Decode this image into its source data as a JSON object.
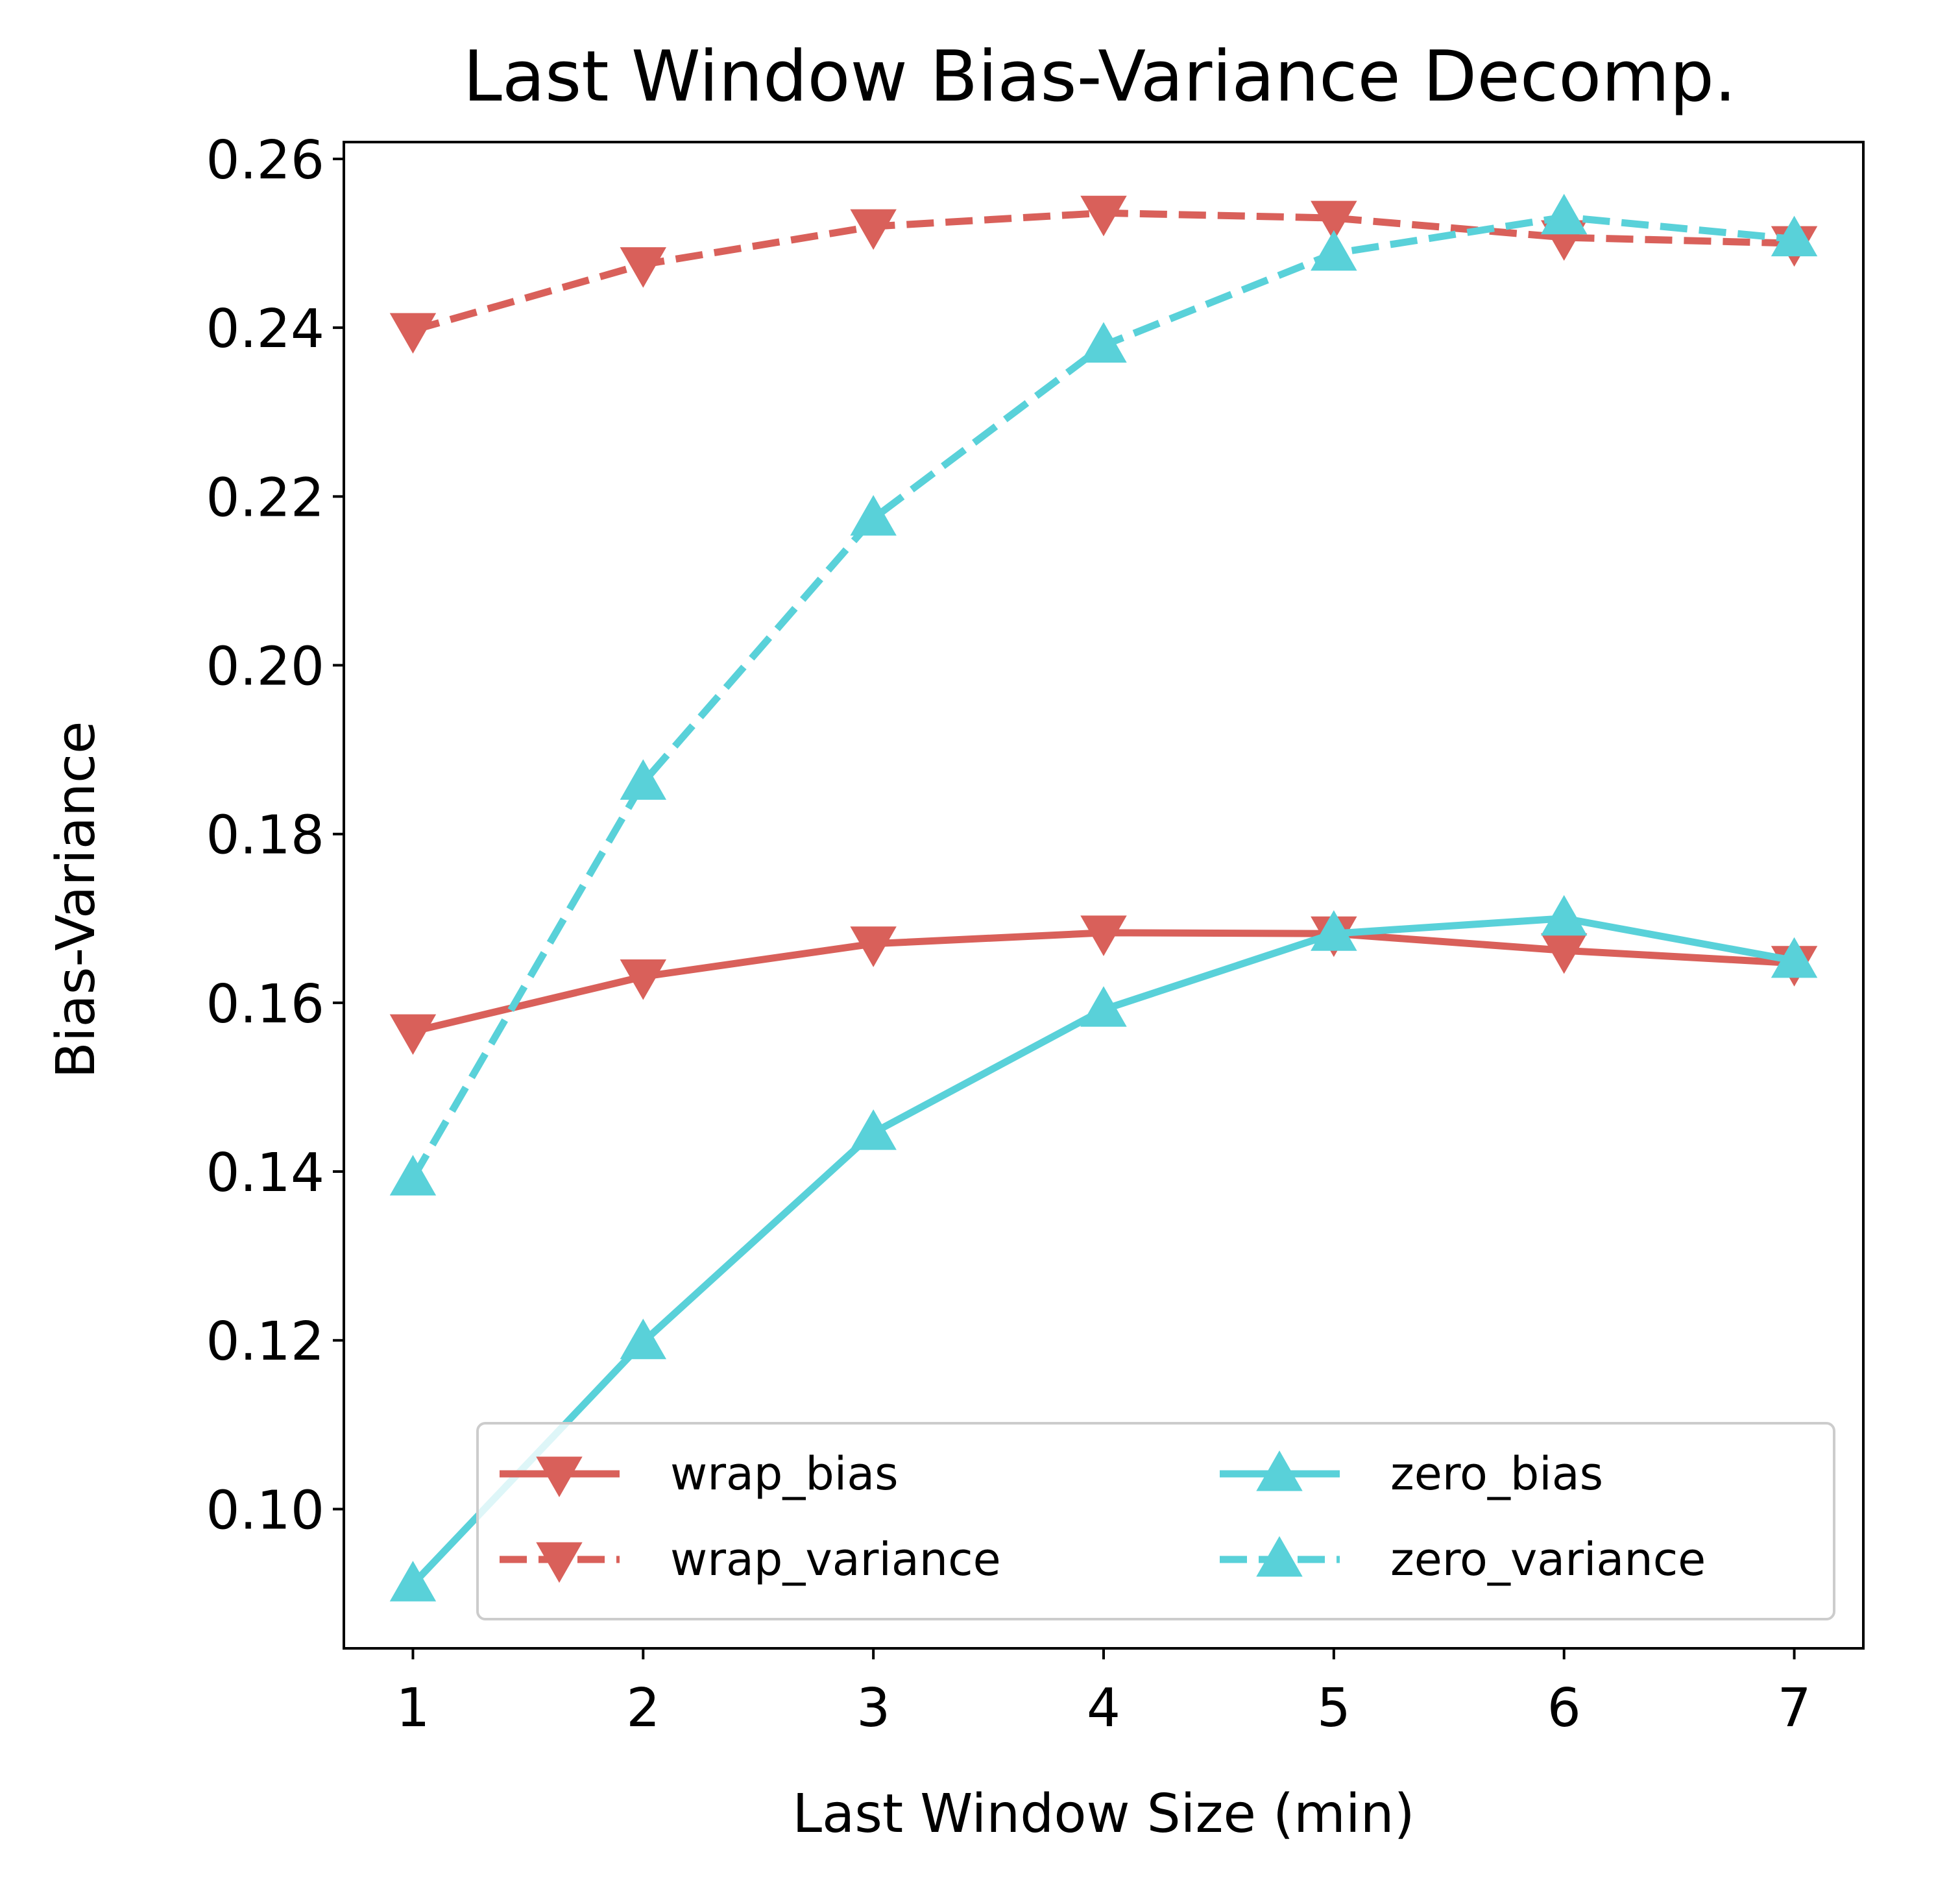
{
  "chart_data": {
    "type": "line",
    "title": "Last Window Bias-Variance Decomp.",
    "xlabel": "Last Window Size (min)",
    "ylabel": "Bias-Variance",
    "x": [
      1,
      2,
      3,
      4,
      5,
      6,
      7
    ],
    "xticks": [
      "1",
      "2",
      "3",
      "4",
      "5",
      "6",
      "7"
    ],
    "yticks": [
      "0.10",
      "0.12",
      "0.14",
      "0.16",
      "0.18",
      "0.20",
      "0.22",
      "0.24",
      "0.26"
    ],
    "xlim": [
      0.7,
      7.3
    ],
    "ylim": [
      0.0835,
      0.262
    ],
    "grid": false,
    "legend_position": "lower-right",
    "series": [
      {
        "name": "wrap_bias",
        "color": "#d9605a",
        "line_style": "solid",
        "marker": "triangle-down",
        "values": [
          0.1566,
          0.1631,
          0.167,
          0.1683,
          0.1682,
          0.1662,
          0.1647
        ]
      },
      {
        "name": "wrap_variance",
        "color": "#d9605a",
        "line_style": "dashed",
        "marker": "triangle-down",
        "values": [
          0.2397,
          0.2475,
          0.252,
          0.2536,
          0.253,
          0.2507,
          0.25
        ]
      },
      {
        "name": "zero_bias",
        "color": "#59d1d9",
        "line_style": "solid",
        "marker": "triangle-up",
        "values": [
          0.0911,
          0.1198,
          0.1446,
          0.1592,
          0.1682,
          0.17,
          0.165
        ]
      },
      {
        "name": "zero_variance",
        "color": "#59d1d9",
        "line_style": "dashed",
        "marker": "triangle-up",
        "values": [
          0.1392,
          0.1861,
          0.2174,
          0.2379,
          0.2488,
          0.2531,
          0.2505
        ]
      }
    ]
  }
}
